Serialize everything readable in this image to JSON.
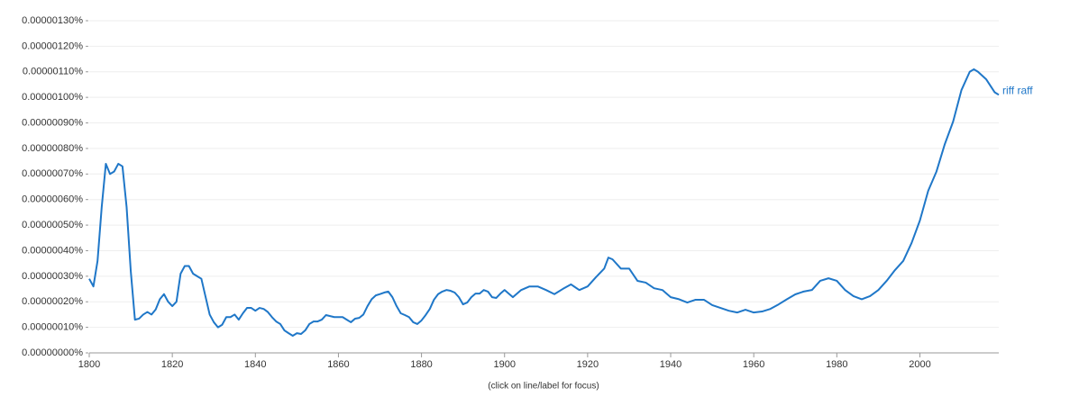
{
  "chart_data": {
    "type": "line",
    "x": [
      1800,
      1801,
      1802,
      1803,
      1804,
      1805,
      1806,
      1807,
      1808,
      1809,
      1810,
      1811,
      1812,
      1813,
      1814,
      1815,
      1816,
      1817,
      1818,
      1819,
      1820,
      1821,
      1822,
      1823,
      1824,
      1825,
      1826,
      1827,
      1828,
      1829,
      1830,
      1831,
      1832,
      1833,
      1834,
      1835,
      1836,
      1837,
      1838,
      1839,
      1840,
      1841,
      1842,
      1843,
      1844,
      1845,
      1846,
      1847,
      1848,
      1849,
      1850,
      1851,
      1852,
      1853,
      1854,
      1855,
      1856,
      1857,
      1858,
      1859,
      1860,
      1861,
      1862,
      1863,
      1864,
      1865,
      1866,
      1867,
      1868,
      1869,
      1870,
      1871,
      1872,
      1873,
      1874,
      1875,
      1876,
      1877,
      1878,
      1879,
      1880,
      1881,
      1882,
      1883,
      1884,
      1885,
      1886,
      1887,
      1888,
      1889,
      1890,
      1891,
      1892,
      1893,
      1894,
      1895,
      1896,
      1897,
      1898,
      1899,
      1900,
      1902,
      1904,
      1906,
      1908,
      1910,
      1912,
      1914,
      1916,
      1918,
      1920,
      1922,
      1924,
      1925,
      1926,
      1928,
      1930,
      1932,
      1934,
      1936,
      1938,
      1940,
      1942,
      1944,
      1946,
      1948,
      1950,
      1952,
      1954,
      1956,
      1958,
      1960,
      1962,
      1964,
      1966,
      1968,
      1970,
      1972,
      1974,
      1976,
      1978,
      1980,
      1982,
      1984,
      1986,
      1988,
      1990,
      1992,
      1994,
      1996,
      1998,
      2000,
      2002,
      2004,
      2006,
      2008,
      2010,
      2012,
      2013,
      2014,
      2016,
      2018,
      2019
    ],
    "series": [
      {
        "name": "riff raff",
        "color": "#1f77c8",
        "values": [
          2.9e-07,
          2.6e-07,
          3.6e-07,
          5.7e-07,
          7.4e-07,
          7e-07,
          7.1e-07,
          7.4e-07,
          7.3e-07,
          5.7e-07,
          3.2e-07,
          1.3e-07,
          1.34e-07,
          1.5e-07,
          1.6e-07,
          1.5e-07,
          1.7e-07,
          2.1e-07,
          2.3e-07,
          2e-07,
          1.83e-07,
          2e-07,
          3.1e-07,
          3.4e-07,
          3.4e-07,
          3.1e-07,
          3e-07,
          2.9e-07,
          2.2e-07,
          1.5e-07,
          1.2e-07,
          1e-07,
          1.1e-07,
          1.4e-07,
          1.4e-07,
          1.5e-07,
          1.3e-07,
          1.55e-07,
          1.76e-07,
          1.76e-07,
          1.65e-07,
          1.76e-07,
          1.72e-07,
          1.6e-07,
          1.4e-07,
          1.23e-07,
          1.13e-07,
          8.8e-08,
          7.7e-08,
          6.7e-08,
          7.7e-08,
          7.4e-08,
          8.8e-08,
          1.13e-07,
          1.23e-07,
          1.23e-07,
          1.3e-07,
          1.48e-07,
          1.44e-07,
          1.4e-07,
          1.4e-07,
          1.4e-07,
          1.3e-07,
          1.2e-07,
          1.34e-07,
          1.37e-07,
          1.5e-07,
          1.83e-07,
          2.1e-07,
          2.25e-07,
          2.3e-07,
          2.36e-07,
          2.4e-07,
          2.18e-07,
          1.83e-07,
          1.55e-07,
          1.48e-07,
          1.4e-07,
          1.2e-07,
          1.13e-07,
          1.27e-07,
          1.48e-07,
          1.72e-07,
          2.08e-07,
          2.3e-07,
          2.4e-07,
          2.46e-07,
          2.43e-07,
          2.36e-07,
          2.18e-07,
          1.9e-07,
          1.97e-07,
          2.18e-07,
          2.32e-07,
          2.32e-07,
          2.46e-07,
          2.4e-07,
          2.18e-07,
          2.15e-07,
          2.32e-07,
          2.46e-07,
          2.18e-07,
          2.46e-07,
          2.6e-07,
          2.6e-07,
          2.46e-07,
          2.3e-07,
          2.5e-07,
          2.68e-07,
          2.46e-07,
          2.6e-07,
          2.96e-07,
          3.3e-07,
          3.73e-07,
          3.66e-07,
          3.3e-07,
          3.3e-07,
          2.82e-07,
          2.75e-07,
          2.53e-07,
          2.46e-07,
          2.18e-07,
          2.1e-07,
          1.97e-07,
          2.08e-07,
          2.08e-07,
          1.87e-07,
          1.76e-07,
          1.65e-07,
          1.58e-07,
          1.69e-07,
          1.58e-07,
          1.62e-07,
          1.72e-07,
          1.9e-07,
          2.1e-07,
          2.29e-07,
          2.4e-07,
          2.46e-07,
          2.82e-07,
          2.92e-07,
          2.82e-07,
          2.46e-07,
          2.22e-07,
          2.1e-07,
          2.22e-07,
          2.46e-07,
          2.82e-07,
          3.24e-07,
          3.6e-07,
          4.3e-07,
          5.18e-07,
          6.34e-07,
          7.1e-07,
          8.17e-07,
          9.05e-07,
          1.028e-06,
          1.1e-06,
          1.11e-06,
          1.1e-06,
          1.07e-06,
          1.02e-06,
          1.01e-06
        ]
      }
    ],
    "xlim": [
      1800,
      2019
    ],
    "xticks": [
      1800,
      1820,
      1840,
      1860,
      1880,
      1900,
      1920,
      1940,
      1960,
      1980,
      2000
    ],
    "ylim": [
      0,
      1.3e-06
    ],
    "yticks": [
      {
        "value": 0,
        "label": "0.00000000%"
      },
      {
        "value": 1e-07,
        "label": "0.00000010%"
      },
      {
        "value": 2e-07,
        "label": "0.00000020%"
      },
      {
        "value": 3e-07,
        "label": "0.00000030%"
      },
      {
        "value": 4e-07,
        "label": "0.00000040%"
      },
      {
        "value": 5e-07,
        "label": "0.00000050%"
      },
      {
        "value": 6e-07,
        "label": "0.00000060%"
      },
      {
        "value": 7e-07,
        "label": "0.00000070%"
      },
      {
        "value": 8e-07,
        "label": "0.00000080%"
      },
      {
        "value": 9e-07,
        "label": "0.00000090%"
      },
      {
        "value": 1e-06,
        "label": "0.00000100%"
      },
      {
        "value": 1.1e-06,
        "label": "0.00000110%"
      },
      {
        "value": 1.2e-06,
        "label": "0.00000120%"
      },
      {
        "value": 1.3e-06,
        "label": "0.00000130%"
      }
    ],
    "grid": true,
    "note": "(click on line/label for focus)"
  }
}
